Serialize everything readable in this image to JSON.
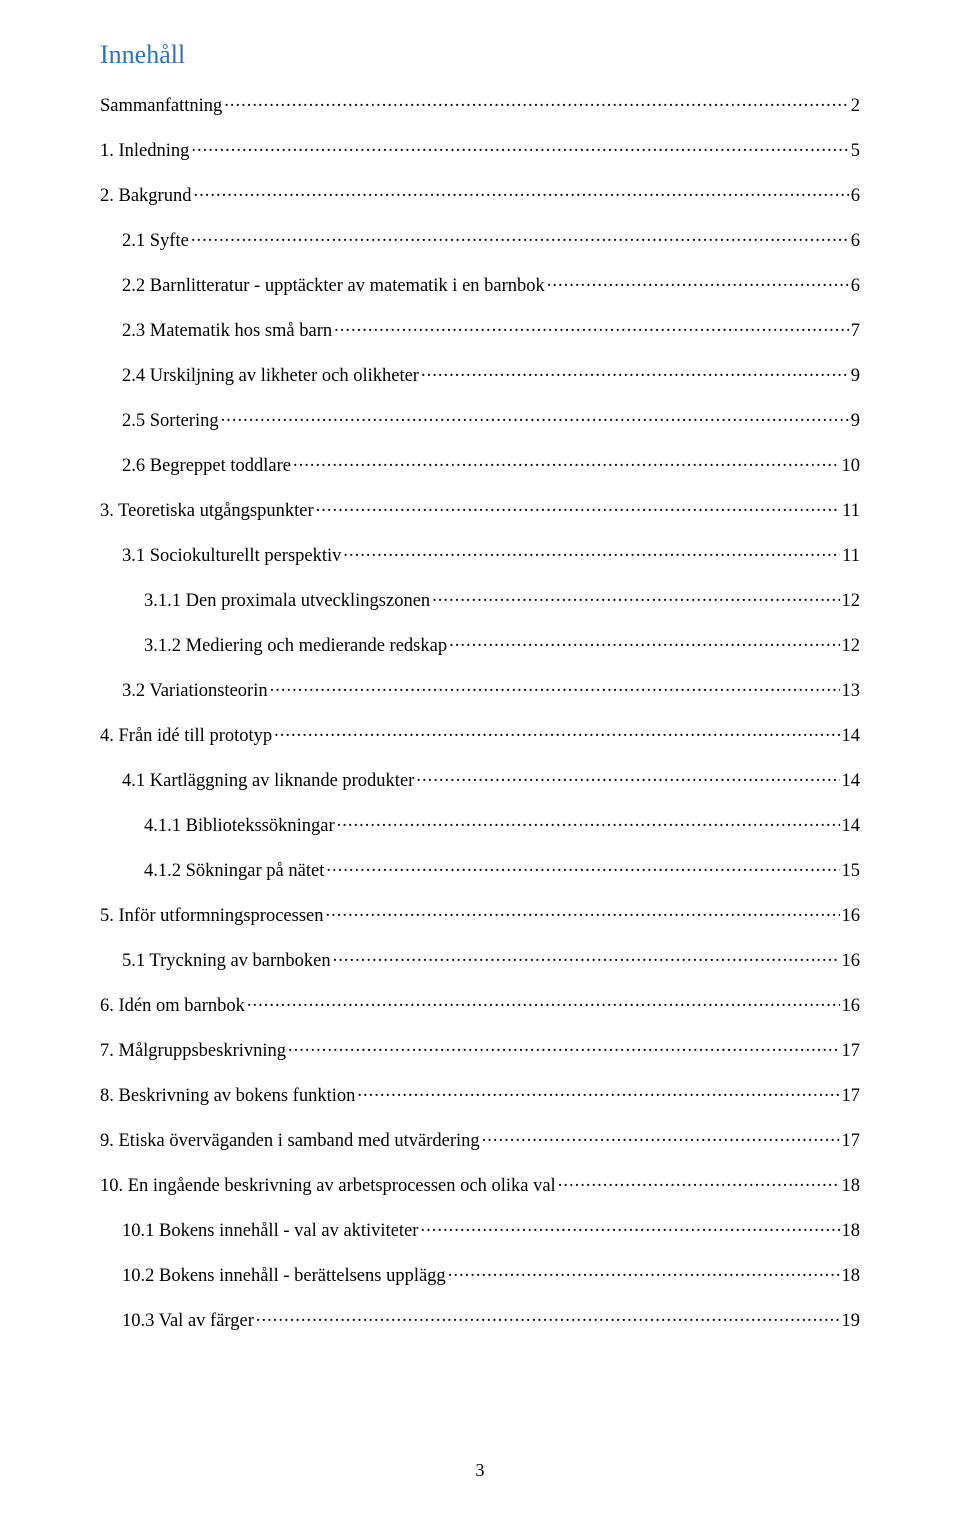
{
  "heading": "Innehåll",
  "page_number": "3",
  "colors": {
    "heading": "#2e74b5",
    "text": "#000000",
    "background": "#ffffff"
  },
  "toc": [
    {
      "label": "Sammanfattning",
      "page": "2",
      "indent": 0
    },
    {
      "label": "1. Inledning",
      "page": "5",
      "indent": 0
    },
    {
      "label": "2. Bakgrund",
      "page": "6",
      "indent": 0
    },
    {
      "label": "2.1 Syfte",
      "page": "6",
      "indent": 1
    },
    {
      "label": "2.2 Barnlitteratur - upptäckter av matematik i en barnbok",
      "page": "6",
      "indent": 1
    },
    {
      "label": "2.3 Matematik hos små barn",
      "page": "7",
      "indent": 1
    },
    {
      "label": "2.4 Urskiljning av likheter och olikheter",
      "page": "9",
      "indent": 1
    },
    {
      "label": "2.5 Sortering",
      "page": "9",
      "indent": 1
    },
    {
      "label": "2.6 Begreppet toddlare",
      "page": "10",
      "indent": 1
    },
    {
      "label": "3. Teoretiska utgångspunkter",
      "page": "11",
      "indent": 0
    },
    {
      "label": "3.1 Sociokulturellt perspektiv",
      "page": "11",
      "indent": 1
    },
    {
      "label": "3.1.1 Den proximala utvecklingszonen",
      "page": "12",
      "indent": 2
    },
    {
      "label": "3.1.2 Mediering och medierande redskap",
      "page": "12",
      "indent": 2
    },
    {
      "label": "3.2 Variationsteorin",
      "page": "13",
      "indent": 1
    },
    {
      "label": "4. Från idé till prototyp",
      "page": "14",
      "indent": 0
    },
    {
      "label": "4.1 Kartläggning av liknande produkter",
      "page": "14",
      "indent": 1
    },
    {
      "label": "4.1.1 Bibliotekssökningar",
      "page": "14",
      "indent": 2
    },
    {
      "label": "4.1.2 Sökningar på nätet",
      "page": "15",
      "indent": 2
    },
    {
      "label": "5. Inför utformningsprocessen",
      "page": "16",
      "indent": 0
    },
    {
      "label": "5.1 Tryckning av barnboken",
      "page": "16",
      "indent": 1
    },
    {
      "label": "6. Idén om barnbok",
      "page": "16",
      "indent": 0
    },
    {
      "label": "7. Målgruppsbeskrivning",
      "page": "17",
      "indent": 0
    },
    {
      "label": "8. Beskrivning av bokens funktion",
      "page": "17",
      "indent": 0
    },
    {
      "label": "9.  Etiska överväganden i samband med utvärdering",
      "page": "17",
      "indent": 0
    },
    {
      "label": "10. En ingående beskrivning av arbetsprocessen och olika val",
      "page": "18",
      "indent": 0
    },
    {
      "label": "10.1 Bokens innehåll - val av aktiviteter",
      "page": "18",
      "indent": 1
    },
    {
      "label": "10.2 Bokens innehåll - berättelsens upplägg",
      "page": "18",
      "indent": 1
    },
    {
      "label": "10.3 Val av färger",
      "page": "19",
      "indent": 1
    }
  ]
}
